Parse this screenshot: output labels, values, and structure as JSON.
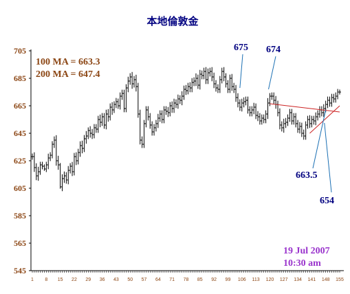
{
  "title": "本地倫敦金",
  "moving_averages": {
    "ma100": "100 MA = 663.3",
    "ma200": "200 MA = 647.4"
  },
  "annotations": {
    "peak1": "675",
    "peak2": "674",
    "level1": "663.5",
    "level2": "654"
  },
  "timestamp": {
    "date": "19 Jul 2007",
    "time": "10:30 am"
  },
  "colors": {
    "bars": "#000000",
    "title": "#000080",
    "ma_text": "#8b4513",
    "y_ticks": "#8b4513",
    "x_ticks": "#8b4513",
    "annotation_text": "#000080",
    "annotation_lines": "#1a6fb3",
    "trendline": "#cc2222",
    "timestamp": "#9932cc"
  },
  "chart_data": {
    "type": "bar",
    "subtype": "ohlc",
    "title": "本地倫敦金",
    "xlabel": "",
    "ylabel": "",
    "ylim": [
      545,
      705
    ],
    "yticks": [
      545,
      565,
      585,
      605,
      625,
      645,
      665,
      685,
      705
    ],
    "xlim": [
      1,
      155
    ],
    "xticks": [
      1,
      8,
      15,
      22,
      29,
      36,
      43,
      50,
      57,
      64,
      71,
      78,
      85,
      92,
      99,
      106,
      113,
      120,
      127,
      134,
      141,
      148,
      155
    ],
    "grid": false,
    "legend": "none",
    "closes": [
      628,
      620,
      614,
      617,
      622,
      621,
      619,
      622,
      627,
      629,
      637,
      640,
      625,
      622,
      606,
      612,
      614,
      611,
      618,
      621,
      617,
      628,
      625,
      631,
      636,
      634,
      641,
      643,
      647,
      645,
      644,
      649,
      648,
      655,
      653,
      657,
      651,
      659,
      657,
      664,
      662,
      666,
      668,
      665,
      672,
      674,
      663,
      678,
      683,
      686,
      681,
      684,
      679,
      659,
      640,
      637,
      652,
      662,
      657,
      651,
      646,
      649,
      652,
      656,
      659,
      655,
      662,
      661,
      660,
      665,
      663,
      667,
      666,
      670,
      669,
      672,
      677,
      676,
      679,
      678,
      682,
      683,
      685,
      680,
      688,
      687,
      690,
      684,
      689,
      690,
      686,
      681,
      678,
      677,
      684,
      690,
      686,
      681,
      677,
      685,
      679,
      677,
      671,
      667,
      664,
      667,
      668,
      669,
      662,
      660,
      662,
      664,
      658,
      657,
      654,
      656,
      655,
      659,
      667,
      672,
      672,
      669,
      666,
      660,
      651,
      649,
      652,
      653,
      656,
      660,
      654,
      657,
      652,
      648,
      650,
      645,
      643,
      651,
      655,
      652,
      655,
      654,
      657,
      659,
      662,
      660,
      663,
      666,
      669,
      667,
      671,
      670,
      672,
      675,
      675
    ],
    "spreads": [
      5,
      7,
      7,
      8,
      5,
      5,
      3,
      5,
      7,
      5,
      5,
      6,
      8,
      8,
      3,
      7,
      7,
      6,
      7,
      5,
      7,
      6,
      7,
      6,
      7,
      8,
      6,
      8,
      5,
      7,
      7,
      6,
      6,
      6,
      8,
      6,
      6,
      7,
      8,
      6,
      8,
      5,
      6,
      5,
      6,
      6,
      6,
      6,
      7,
      6,
      8,
      6,
      8,
      6,
      7,
      6,
      6,
      6,
      6,
      6,
      6,
      6,
      6,
      7,
      6,
      6,
      6,
      6,
      7,
      6,
      7,
      7,
      6,
      7,
      6,
      8,
      6,
      7,
      6,
      7,
      7,
      6,
      8,
      6,
      7,
      6,
      6,
      7,
      7,
      6,
      7,
      7,
      6,
      6,
      6,
      6,
      7,
      6,
      6,
      6,
      7,
      6,
      7,
      7,
      6,
      7,
      7,
      6,
      6,
      6,
      6,
      7,
      6,
      7,
      6,
      6,
      6,
      6,
      8,
      5,
      6,
      6,
      7,
      6,
      7,
      6,
      8,
      7,
      6,
      6,
      6,
      6,
      6,
      6,
      7,
      6,
      6,
      6,
      6,
      7,
      6,
      6,
      7,
      6,
      6,
      6,
      7,
      6,
      6,
      6,
      6,
      6,
      6,
      5,
      4
    ],
    "peaks": [
      {
        "label": "675",
        "x": 105,
        "y": 675
      },
      {
        "label": "674",
        "x": 119,
        "y": 674
      }
    ],
    "trendlines": [
      {
        "from": [
          120,
          666.5
        ],
        "to": [
          155,
          660.5
        ]
      },
      {
        "from": [
          140,
          645
        ],
        "to": [
          155,
          665
        ]
      }
    ],
    "levels": [
      {
        "label": "663.5",
        "x": 148,
        "y": 663.5
      },
      {
        "label": "654",
        "x": 147,
        "y": 654
      }
    ]
  }
}
